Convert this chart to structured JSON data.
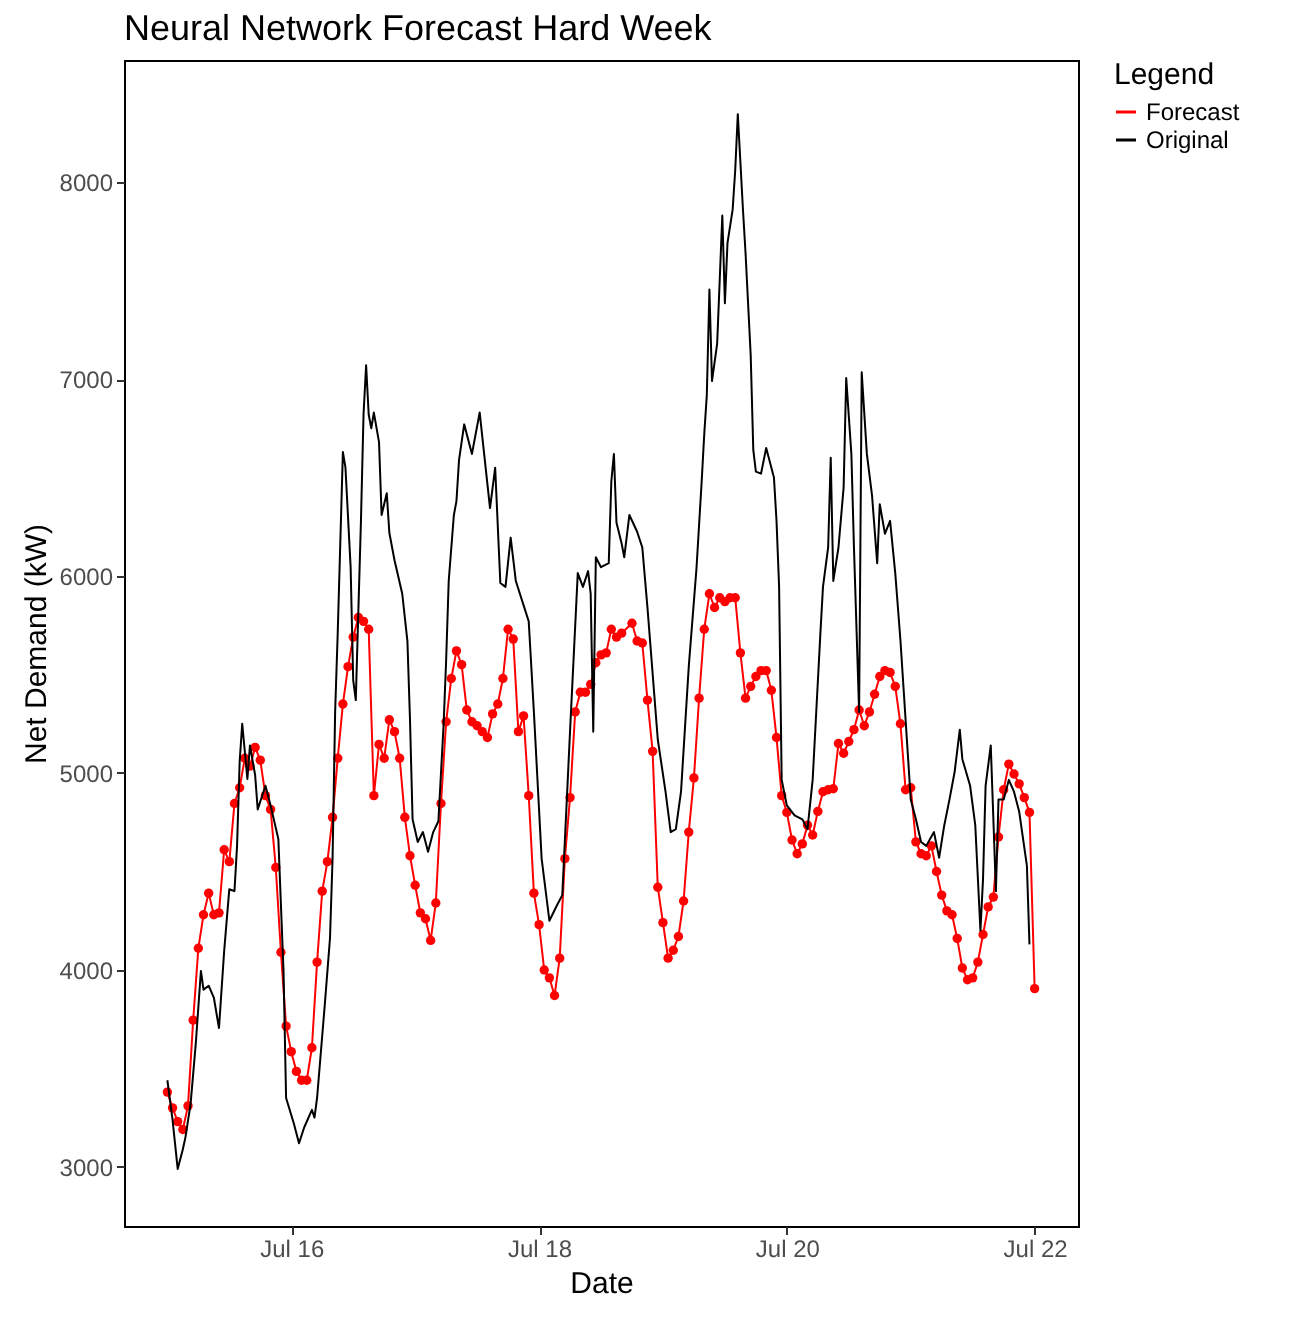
{
  "chart_data": {
    "type": "line",
    "title": "Neural Network Forecast Hard Week",
    "xlabel": "Date",
    "ylabel": "Net Demand (kW)",
    "legend_title": "Legend",
    "legend": "right",
    "xlim": [
      "--07-14T15:36",
      "--07-22T08:24"
    ],
    "xticks": [
      {
        "value": "--07-16",
        "label": "Jul 16"
      },
      {
        "value": "--07-18",
        "label": "Jul 18"
      },
      {
        "value": "--07-20",
        "label": "Jul 20"
      },
      {
        "value": "--07-22",
        "label": "Jul 22"
      }
    ],
    "ylim": [
      2700,
      8620
    ],
    "yticks": [
      3000,
      4000,
      5000,
      6000,
      7000,
      8000
    ],
    "series": [
      {
        "name": "Forecast",
        "color": "#ff0000",
        "marker": "circle",
        "x": [
          "--07-15T00:00",
          "--07-15T01:00",
          "--07-15T02:00",
          "--07-15T03:00",
          "--07-15T04:00",
          "--07-15T05:00",
          "--07-15T06:00",
          "--07-15T07:00",
          "--07-15T08:00",
          "--07-15T09:00",
          "--07-15T10:00",
          "--07-15T11:00",
          "--07-15T12:00",
          "--07-15T13:00",
          "--07-15T14:00",
          "--07-15T15:00",
          "--07-15T16:00",
          "--07-15T17:00",
          "--07-15T18:00",
          "--07-15T19:00",
          "--07-15T20:00",
          "--07-15T21:00",
          "--07-15T22:00",
          "--07-15T23:00",
          "--07-16T00:00",
          "--07-16T01:00",
          "--07-16T02:00",
          "--07-16T03:00",
          "--07-16T04:00",
          "--07-16T05:00",
          "--07-16T06:00",
          "--07-16T07:00",
          "--07-16T08:00",
          "--07-16T09:00",
          "--07-16T10:00",
          "--07-16T11:00",
          "--07-16T12:00",
          "--07-16T13:00",
          "--07-16T14:00",
          "--07-16T15:00",
          "--07-16T16:00",
          "--07-16T17:00",
          "--07-16T18:00",
          "--07-16T19:00",
          "--07-16T20:00",
          "--07-16T21:00",
          "--07-16T22:00",
          "--07-16T23:00",
          "--07-17T00:00",
          "--07-17T01:00",
          "--07-17T02:00",
          "--07-17T03:00",
          "--07-17T04:00",
          "--07-17T05:00",
          "--07-17T06:00",
          "--07-17T07:00",
          "--07-17T08:00",
          "--07-17T09:00",
          "--07-17T10:00",
          "--07-17T11:00",
          "--07-17T12:00",
          "--07-17T13:00",
          "--07-17T14:00",
          "--07-17T15:00",
          "--07-17T16:00",
          "--07-17T17:00",
          "--07-17T18:00",
          "--07-17T19:00",
          "--07-17T20:00",
          "--07-17T21:00",
          "--07-17T22:00",
          "--07-17T23:00",
          "--07-18T00:00",
          "--07-18T01:00",
          "--07-18T02:00",
          "--07-18T03:00",
          "--07-18T04:00",
          "--07-18T05:00",
          "--07-18T06:00",
          "--07-18T07:00",
          "--07-18T08:00",
          "--07-18T09:00",
          "--07-18T10:00",
          "--07-18T11:00",
          "--07-18T12:00",
          "--07-18T13:00",
          "--07-18T14:00",
          "--07-18T15:00",
          "--07-18T16:00",
          "--07-18T18:00",
          "--07-18T19:00",
          "--07-18T20:00",
          "--07-18T21:00",
          "--07-18T22:00",
          "--07-18T23:00",
          "--07-19T00:00",
          "--07-19T01:00",
          "--07-19T02:00",
          "--07-19T03:00",
          "--07-19T04:00",
          "--07-19T05:00",
          "--07-19T06:00",
          "--07-19T07:00",
          "--07-19T08:00",
          "--07-19T09:00",
          "--07-19T10:00",
          "--07-19T11:00",
          "--07-19T12:00",
          "--07-19T13:00",
          "--07-19T14:00",
          "--07-19T15:00",
          "--07-19T16:00",
          "--07-19T17:00",
          "--07-19T18:00",
          "--07-19T19:00",
          "--07-19T20:00",
          "--07-19T21:00",
          "--07-19T22:00",
          "--07-19T23:00",
          "--07-20T00:00",
          "--07-20T01:00",
          "--07-20T02:00",
          "--07-20T03:00",
          "--07-20T04:00",
          "--07-20T05:00",
          "--07-20T06:00",
          "--07-20T07:00",
          "--07-20T08:00",
          "--07-20T09:00",
          "--07-20T10:00",
          "--07-20T11:00",
          "--07-20T12:00",
          "--07-20T13:00",
          "--07-20T14:00",
          "--07-20T15:00",
          "--07-20T16:00",
          "--07-20T17:00",
          "--07-20T18:00",
          "--07-20T19:00",
          "--07-20T20:00",
          "--07-20T21:00",
          "--07-20T22:00",
          "--07-20T23:00",
          "--07-21T00:00",
          "--07-21T01:00",
          "--07-21T02:00",
          "--07-21T03:00",
          "--07-21T04:00",
          "--07-21T05:00",
          "--07-21T06:00",
          "--07-21T07:00",
          "--07-21T08:00",
          "--07-21T09:00",
          "--07-21T10:00",
          "--07-21T11:00",
          "--07-21T12:00",
          "--07-21T13:00",
          "--07-21T14:00",
          "--07-21T15:00",
          "--07-21T16:00",
          "--07-21T17:00",
          "--07-21T18:00",
          "--07-21T19:00",
          "--07-21T20:00",
          "--07-21T21:00",
          "--07-21T22:00",
          "--07-21T23:00",
          "--07-22T00:00"
        ],
        "values": [
          3380,
          3300,
          3230,
          3190,
          3310,
          3745,
          4110,
          4280,
          4390,
          4280,
          4290,
          4610,
          4550,
          4845,
          4925,
          5075,
          5035,
          5130,
          5065,
          4885,
          4815,
          4520,
          4090,
          3715,
          3585,
          3485,
          3440,
          3440,
          3605,
          4040,
          4400,
          4550,
          4775,
          5075,
          5350,
          5540,
          5690,
          5790,
          5770,
          5730,
          4885,
          5145,
          5075,
          5270,
          5210,
          5075,
          4775,
          4580,
          4430,
          4290,
          4260,
          4150,
          4340,
          4845,
          5260,
          5480,
          5620,
          5550,
          5320,
          5260,
          5240,
          5210,
          5180,
          5300,
          5350,
          5480,
          5730,
          5680,
          5210,
          5290,
          4885,
          4390,
          4230,
          4000,
          3960,
          3870,
          4060,
          4565,
          4875,
          5310,
          5410,
          5410,
          5450,
          5560,
          5600,
          5610,
          5730,
          5690,
          5710,
          5760,
          5670,
          5660,
          5370,
          5110,
          4420,
          4240,
          4060,
          4100,
          4170,
          4350,
          4700,
          4975,
          5380,
          5730,
          5910,
          5840,
          5890,
          5870,
          5890,
          5890,
          5610,
          5380,
          5440,
          5490,
          5520,
          5520,
          5420,
          5180,
          4885,
          4800,
          4660,
          4590,
          4640,
          4735,
          4685,
          4805,
          4905,
          4915,
          4920,
          5150,
          5100,
          5160,
          5220,
          5320,
          5240,
          5310,
          5400,
          5490,
          5520,
          5510,
          5440,
          5250,
          4915,
          4925,
          4650,
          4590,
          4580,
          4630,
          4500,
          4380,
          4300,
          4280,
          4160,
          4010,
          3950,
          3960,
          4040,
          4180,
          4320,
          4370,
          4675,
          4915,
          5045,
          4995,
          4945,
          4875,
          4800,
          3905
        ]
      },
      {
        "name": "Original",
        "color": "#000000",
        "marker": "none",
        "x": [
          "--07-15T00:00",
          "--07-15T01:00",
          "--07-15T02:00",
          "--07-15T03:00",
          "--07-15T03:30",
          "--07-15T04:30",
          "--07-15T05:30",
          "--07-15T06:30",
          "--07-15T07:00",
          "--07-15T08:00",
          "--07-15T09:00",
          "--07-15T10:00",
          "--07-15T11:00",
          "--07-15T12:00",
          "--07-15T13:00",
          "--07-15T13:30",
          "--07-15T14:00",
          "--07-15T14:30",
          "--07-15T15:30",
          "--07-15T16:00",
          "--07-15T17:00",
          "--07-15T17:30",
          "--07-15T19:00",
          "--07-15T20:00",
          "--07-15T21:30",
          "--07-15T22:30",
          "--07-15T23:00",
          "--07-16T00:30",
          "--07-16T01:30",
          "--07-16T02:30",
          "--07-16T04:00",
          "--07-16T04:30",
          "--07-16T05:00",
          "--07-16T06:30",
          "--07-16T07:30",
          "--07-16T08:00",
          "--07-16T08:30",
          "--07-16T09:00",
          "--07-16T10:00",
          "--07-16T10:30",
          "--07-16T11:30",
          "--07-16T12:00",
          "--07-16T12:30",
          "--07-16T13:30",
          "--07-16T14:00",
          "--07-16T14:30",
          "--07-16T15:00",
          "--07-16T15:30",
          "--07-16T16:00",
          "--07-16T17:00",
          "--07-16T17:30",
          "--07-16T18:30",
          "--07-16T19:00",
          "--07-16T20:00",
          "--07-16T21:30",
          "--07-16T22:30",
          "--07-16T23:00",
          "--07-16T23:30",
          "--07-17T00:30",
          "--07-17T01:30",
          "--07-17T02:30",
          "--07-17T03:30",
          "--07-17T04:30",
          "--07-17T05:30",
          "--07-17T06:00",
          "--07-17T06:30",
          "--07-17T07:30",
          "--07-17T08:00",
          "--07-17T08:30",
          "--07-17T09:30",
          "--07-17T11:00",
          "--07-17T12:30",
          "--07-17T14:30",
          "--07-17T15:30",
          "--07-17T16:30",
          "--07-17T17:30",
          "--07-17T18:30",
          "--07-17T19:30",
          "--07-17T22:00",
          "--07-17T23:00",
          "--07-18T00:30",
          "--07-18T02:00",
          "--07-18T03:30",
          "--07-18T04:30",
          "--07-18T06:00",
          "--07-18T07:30",
          "--07-18T08:30",
          "--07-18T09:30",
          "--07-18T10:00",
          "--07-18T10:30",
          "--07-18T11:00",
          "--07-18T12:00",
          "--07-18T13:30",
          "--07-18T14:00",
          "--07-18T14:30",
          "--07-18T15:00",
          "--07-18T16:00",
          "--07-18T16:30",
          "--07-18T17:30",
          "--07-18T19:00",
          "--07-18T20:00",
          "--07-18T21:00",
          "--07-18T23:00",
          "--07-19T00:30",
          "--07-19T01:30",
          "--07-19T02:30",
          "--07-19T03:30",
          "--07-19T05:00",
          "--07-19T06:30",
          "--07-19T07:30",
          "--07-19T08:00",
          "--07-19T08:30",
          "--07-19T09:00",
          "--07-19T09:30",
          "--07-19T10:30",
          "--07-19T11:30",
          "--07-19T12:00",
          "--07-19T12:30",
          "--07-19T13:30",
          "--07-19T14:00",
          "--07-19T14:30",
          "--07-19T15:30",
          "--07-19T16:00",
          "--07-19T17:00",
          "--07-19T17:30",
          "--07-19T18:00",
          "--07-19T19:00",
          "--07-19T20:00",
          "--07-19T21:30",
          "--07-19T22:00",
          "--07-19T22:30",
          "--07-19T23:00",
          "--07-20T00:00",
          "--07-20T01:30",
          "--07-20T03:00",
          "--07-20T04:00",
          "--07-20T05:00",
          "--07-20T06:30",
          "--07-20T07:00",
          "--07-20T08:00",
          "--07-20T08:30",
          "--07-20T09:00",
          "--07-20T10:00",
          "--07-20T11:00",
          "--07-20T11:30",
          "--07-20T12:30",
          "--07-20T13:00",
          "--07-20T14:00",
          "--07-20T14:30",
          "--07-20T15:30",
          "--07-20T16:30",
          "--07-20T17:30",
          "--07-20T18:00",
          "--07-20T19:00",
          "--07-20T20:00",
          "--07-20T21:00",
          "--07-20T22:00",
          "--07-20T23:30",
          "--07-21T00:00",
          "--07-21T01:00",
          "--07-21T02:00",
          "--07-21T03:00",
          "--07-21T04:30",
          "--07-21T05:30",
          "--07-21T06:30",
          "--07-21T07:30",
          "--07-21T08:30",
          "--07-21T09:30",
          "--07-21T10:00",
          "--07-21T11:30",
          "--07-21T12:30",
          "--07-21T13:30",
          "--07-21T14:00",
          "--07-21T14:30",
          "--07-21T15:30",
          "--07-21T16:30",
          "--07-21T17:00",
          "--07-21T18:00",
          "--07-21T19:00",
          "--07-21T20:00",
          "--07-21T21:00",
          "--07-21T22:30",
          "--07-21T23:00"
        ],
        "values": [
          3440,
          3240,
          2990,
          3090,
          3150,
          3320,
          3625,
          3995,
          3900,
          3920,
          3860,
          3705,
          4095,
          4410,
          4400,
          4630,
          5055,
          5250,
          4970,
          5140,
          4990,
          4815,
          4935,
          4835,
          4665,
          3995,
          3350,
          3220,
          3120,
          3200,
          3290,
          3250,
          3350,
          3825,
          4160,
          4565,
          5310,
          5710,
          6630,
          6550,
          6045,
          5470,
          5370,
          6280,
          6820,
          7070,
          6820,
          6750,
          6830,
          6680,
          6310,
          6420,
          6220,
          6080,
          5910,
          5670,
          5270,
          4765,
          4650,
          4700,
          4600,
          4700,
          4755,
          5240,
          5570,
          5975,
          6310,
          6380,
          6590,
          6770,
          6620,
          6830,
          6345,
          6550,
          5965,
          5945,
          6195,
          5975,
          5770,
          5310,
          4565,
          4250,
          4330,
          4380,
          5210,
          6015,
          5945,
          6025,
          5910,
          5210,
          6095,
          6045,
          6065,
          6480,
          6620,
          6270,
          6165,
          6095,
          6310,
          6225,
          6145,
          5840,
          5170,
          4905,
          4700,
          4715,
          4905,
          5540,
          6040,
          6480,
          6720,
          6920,
          7455,
          6990,
          7180,
          7830,
          7385,
          7690,
          7860,
          8060,
          8345,
          7860,
          7640,
          7120,
          6640,
          6530,
          6520,
          6650,
          6500,
          6280,
          5945,
          4965,
          4835,
          4785,
          4765,
          4715,
          4965,
          5710,
          5945,
          6145,
          6600,
          5975,
          6145,
          6450,
          7005,
          6620,
          6145,
          5310,
          7035,
          6620,
          6410,
          6065,
          6365,
          6215,
          6280,
          6015,
          5675,
          5070,
          4865,
          4765,
          4650,
          4630,
          4700,
          4570,
          4735,
          4865,
          5005,
          5220,
          5070,
          4935,
          4735,
          4200,
          4460,
          4935,
          5140,
          4400,
          4865,
          4865,
          4965,
          4905,
          4805,
          4530,
          4130
        ]
      }
    ]
  }
}
